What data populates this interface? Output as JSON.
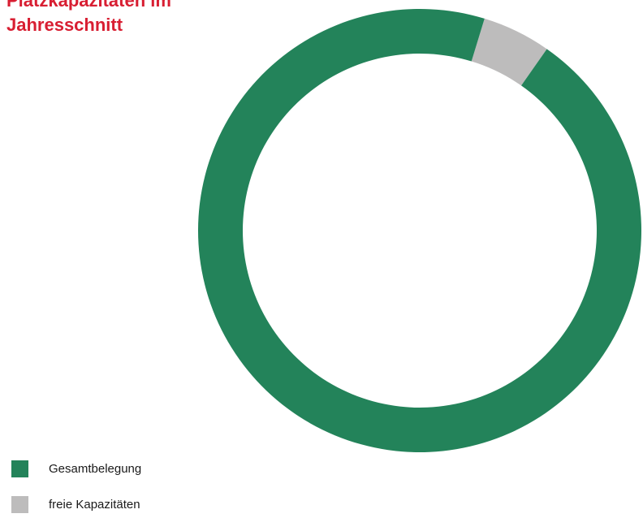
{
  "chart_data": {
    "type": "donut",
    "title": "Platzkapazitäten im Jahresschnitt",
    "series": [
      {
        "name": "Gesamtbelegung",
        "value": 95,
        "color": "#23835a"
      },
      {
        "name": "freie Kapazitäten",
        "value": 5,
        "color": "#bdbcbc"
      }
    ],
    "legend_position": "bottom-left"
  }
}
